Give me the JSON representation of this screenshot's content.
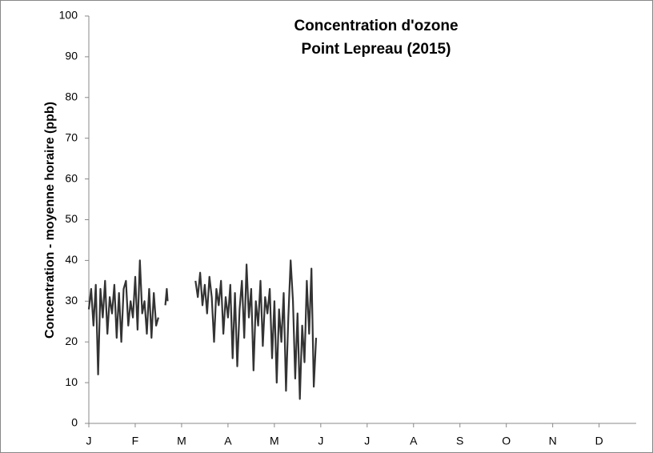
{
  "chart_data": {
    "type": "line",
    "title": [
      "Concentration d'ozone",
      "Point Lepreau (2015)"
    ],
    "y_label": "Concentration - moyenne horaire (ppb)",
    "xlim": [
      0,
      11.8
    ],
    "xticks": [
      {
        "value": 0,
        "label": "J"
      },
      {
        "value": 1,
        "label": "F"
      },
      {
        "value": 2,
        "label": "M"
      },
      {
        "value": 3,
        "label": "A"
      },
      {
        "value": 4,
        "label": "M"
      },
      {
        "value": 5,
        "label": "J"
      },
      {
        "value": 6,
        "label": "J"
      },
      {
        "value": 7,
        "label": "A"
      },
      {
        "value": 8,
        "label": "S"
      },
      {
        "value": 9,
        "label": "O"
      },
      {
        "value": 10,
        "label": "N"
      },
      {
        "value": 11,
        "label": "D"
      }
    ],
    "ylim": [
      0,
      100
    ],
    "yticks": [
      0,
      10,
      20,
      30,
      40,
      50,
      60,
      70,
      80,
      90,
      100
    ],
    "grid": false,
    "x": [
      0,
      0.05,
      0.1,
      0.15,
      0.2,
      0.25,
      0.3,
      0.35,
      0.4,
      0.45,
      0.5,
      0.55,
      0.6,
      0.65,
      0.7,
      0.75,
      0.8,
      0.85,
      0.9,
      0.95,
      1,
      1.05,
      1.1,
      1.15,
      1.2,
      1.25,
      1.3,
      1.35,
      1.4,
      1.45,
      1.5,
      1.55,
      1.65,
      1.68,
      1.7,
      1.9,
      2.3,
      2.35,
      2.4,
      2.45,
      2.5,
      2.55,
      2.6,
      2.65,
      2.7,
      2.75,
      2.8,
      2.85,
      2.9,
      2.95,
      3,
      3.05,
      3.1,
      3.15,
      3.2,
      3.25,
      3.3,
      3.35,
      3.4,
      3.45,
      3.5,
      3.55,
      3.6,
      3.65,
      3.7,
      3.75,
      3.8,
      3.85,
      3.9,
      3.95,
      4,
      4.05,
      4.1,
      4.15,
      4.2,
      4.25,
      4.3,
      4.35,
      4.4,
      4.45,
      4.5,
      4.55,
      4.6,
      4.65,
      4.7,
      4.75,
      4.8,
      4.85,
      4.9
    ],
    "series": [
      {
        "color": "#333333",
        "values": [
          28,
          33,
          24,
          34,
          12,
          33,
          26,
          35,
          22,
          31,
          27,
          34,
          21,
          32,
          20,
          33,
          35,
          24,
          30,
          26,
          36,
          23,
          40,
          27,
          30,
          22,
          33,
          21,
          32,
          24,
          26,
          null,
          29,
          33,
          30,
          null,
          35,
          31,
          37,
          29,
          34,
          27,
          36,
          31,
          20,
          33,
          29,
          35,
          22,
          31,
          26,
          34,
          16,
          32,
          14,
          28,
          35,
          21,
          39,
          26,
          33,
          13,
          30,
          24,
          35,
          19,
          31,
          27,
          33,
          16,
          30,
          10,
          28,
          20,
          32,
          8,
          26,
          40,
          30,
          11,
          27,
          6,
          24,
          15,
          35,
          22,
          38,
          9,
          21
        ]
      }
    ]
  }
}
